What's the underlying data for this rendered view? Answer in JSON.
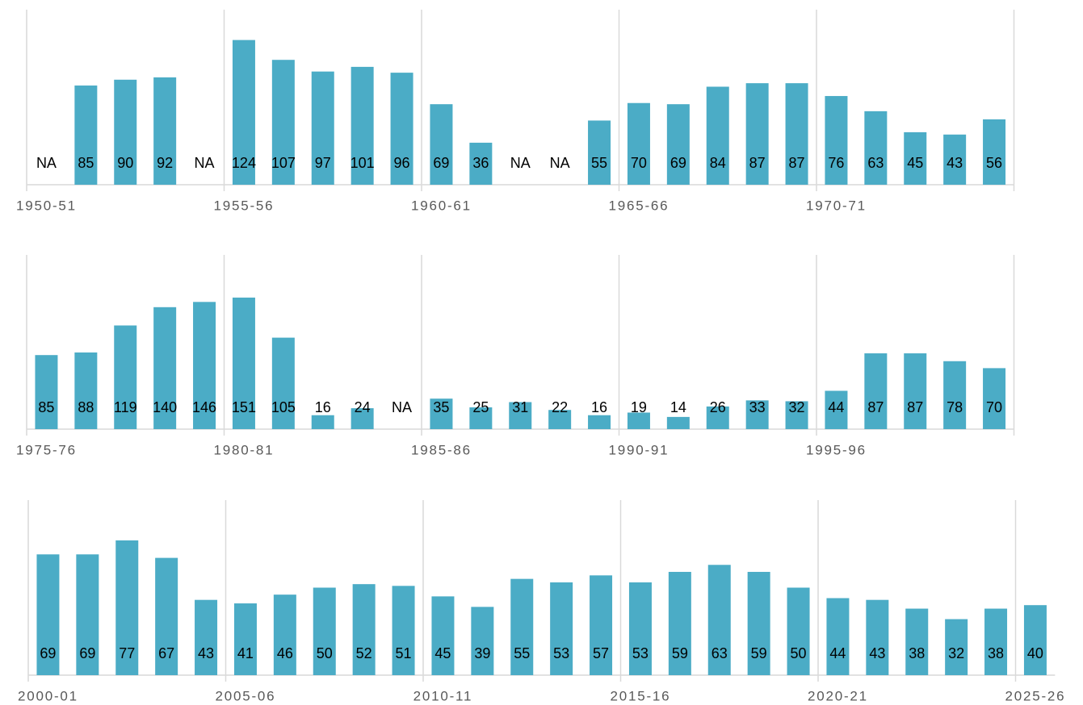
{
  "chart_data": [
    {
      "type": "bar",
      "color": "#4bacc6",
      "ylim": [
        0,
        150
      ],
      "categories": [
        "1950-51",
        null,
        null,
        null,
        null,
        "1955-56",
        null,
        null,
        null,
        null,
        "1960-61",
        null,
        null,
        null,
        null,
        "1965-66",
        null,
        null,
        null,
        null,
        "1970-71",
        null,
        null,
        null,
        null
      ],
      "values": [
        null,
        85,
        90,
        92,
        null,
        124,
        107,
        97,
        101,
        96,
        69,
        36,
        null,
        null,
        55,
        70,
        69,
        84,
        87,
        87,
        76,
        63,
        45,
        43,
        56
      ],
      "value_labels": [
        "NA",
        null,
        null,
        null,
        "NA",
        null,
        null,
        null,
        null,
        null,
        null,
        null,
        "NA",
        "NA",
        null,
        null,
        null,
        null,
        null,
        null,
        null,
        null,
        null,
        null,
        null
      ]
    },
    {
      "type": "bar",
      "color": "#4bacc6",
      "ylim": [
        0,
        200
      ],
      "categories": [
        "1975-76",
        null,
        null,
        null,
        null,
        "1980-81",
        null,
        null,
        null,
        null,
        "1985-86",
        null,
        null,
        null,
        null,
        "1990-91",
        null,
        null,
        null,
        null,
        "1995-96",
        null,
        null,
        null,
        null
      ],
      "values": [
        85,
        88,
        119,
        140,
        146,
        151,
        105,
        16,
        24,
        null,
        35,
        25,
        31,
        22,
        16,
        19,
        14,
        26,
        33,
        32,
        44,
        87,
        87,
        78,
        70
      ],
      "value_labels": [
        null,
        null,
        null,
        null,
        null,
        null,
        null,
        null,
        null,
        "NA",
        null,
        null,
        null,
        null,
        null,
        null,
        null,
        null,
        null,
        null,
        null,
        null,
        null,
        null,
        null
      ]
    },
    {
      "type": "bar",
      "color": "#4bacc6",
      "ylim": [
        0,
        100
      ],
      "categories": [
        "2000-01",
        null,
        null,
        null,
        null,
        "2005-06",
        null,
        null,
        null,
        null,
        "2010-11",
        null,
        null,
        null,
        null,
        "2015-16",
        null,
        null,
        null,
        null,
        "2020-21",
        null,
        null,
        null,
        null,
        "2025-26"
      ],
      "values": [
        69,
        69,
        77,
        67,
        43,
        41,
        46,
        50,
        52,
        51,
        45,
        39,
        55,
        53,
        57,
        53,
        59,
        63,
        59,
        50,
        44,
        43,
        38,
        32,
        38,
        40
      ]
    }
  ]
}
